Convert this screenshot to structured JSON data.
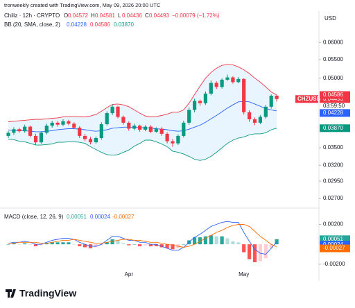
{
  "header": {
    "attribution": "tronweekly created with TradingView.com, May 09, 2026 20:00 UTC"
  },
  "footer": {
    "brand": "TradingView"
  },
  "chart_data": [
    {
      "type": "candlestick",
      "title": "Chiliz · 12h · CRYPTO",
      "symbol": "CHZUSD",
      "currency": "USD",
      "ohlc_keys": [
        "O",
        "H",
        "L",
        "C"
      ],
      "change_label": "−0.00079 (−1.72%)",
      "countdown": "03:59:50",
      "categories": [
        null,
        null,
        null,
        null,
        null,
        null,
        null,
        null,
        null,
        null,
        null,
        null,
        null,
        null,
        null,
        null,
        null,
        null,
        null,
        null,
        null,
        null,
        "Apr",
        null,
        null,
        null,
        null,
        null,
        null,
        null,
        null,
        null,
        null,
        null,
        null,
        null,
        null,
        null,
        null,
        null,
        null,
        null,
        null,
        "May",
        null,
        null,
        null,
        null,
        null,
        null
      ],
      "open": [
        0.0372,
        0.0378,
        0.0385,
        0.0381,
        0.039,
        0.0372,
        0.036,
        0.0378,
        0.0392,
        0.0398,
        0.0394,
        0.0401,
        0.0396,
        0.0388,
        0.0372,
        0.0366,
        0.036,
        0.0368,
        0.0395,
        0.0418,
        0.0432,
        0.041,
        0.0398,
        0.0386,
        0.0392,
        0.0384,
        0.039,
        0.038,
        0.0386,
        0.0376,
        0.0362,
        0.0358,
        0.0372,
        0.0398,
        0.0425,
        0.0445,
        0.044,
        0.0462,
        0.0488,
        0.0478,
        0.0496,
        0.0502,
        0.049,
        0.0498,
        0.042,
        0.0405,
        0.0398,
        0.041,
        0.0432,
        0.04572
      ],
      "high": [
        0.0381,
        0.0389,
        0.0388,
        0.0394,
        0.0392,
        0.0376,
        0.0381,
        0.0396,
        0.0402,
        0.0401,
        0.0405,
        0.0404,
        0.0399,
        0.0391,
        0.0376,
        0.037,
        0.0371,
        0.0399,
        0.0422,
        0.0437,
        0.0434,
        0.0413,
        0.0401,
        0.0396,
        0.0394,
        0.0393,
        0.0393,
        0.0389,
        0.0389,
        0.0379,
        0.0366,
        0.0375,
        0.0402,
        0.043,
        0.045,
        0.0448,
        0.0467,
        0.0494,
        0.0492,
        0.05,
        0.0509,
        0.0505,
        0.0503,
        0.05,
        0.0424,
        0.0409,
        0.0414,
        0.0436,
        0.046,
        0.04581
      ],
      "low": [
        0.0368,
        0.0374,
        0.0378,
        0.0378,
        0.0369,
        0.0355,
        0.0357,
        0.0375,
        0.0388,
        0.039,
        0.0391,
        0.0393,
        0.0385,
        0.0368,
        0.0362,
        0.0356,
        0.0357,
        0.0365,
        0.0392,
        0.0414,
        0.0407,
        0.0394,
        0.0382,
        0.0383,
        0.038,
        0.0381,
        0.0377,
        0.0378,
        0.0372,
        0.0358,
        0.0352,
        0.0355,
        0.0369,
        0.0394,
        0.042,
        0.0434,
        0.0436,
        0.0458,
        0.0473,
        0.0474,
        0.0493,
        0.0486,
        0.0487,
        0.0415,
        0.04,
        0.0393,
        0.0395,
        0.0406,
        0.0428,
        0.04436
      ],
      "close": [
        0.0378,
        0.0385,
        0.0381,
        0.039,
        0.0372,
        0.036,
        0.0378,
        0.0392,
        0.0398,
        0.0394,
        0.0401,
        0.0396,
        0.0388,
        0.0372,
        0.0366,
        0.036,
        0.0368,
        0.0395,
        0.0418,
        0.0432,
        0.041,
        0.0398,
        0.0386,
        0.0392,
        0.0384,
        0.039,
        0.038,
        0.0386,
        0.0376,
        0.0362,
        0.0358,
        0.0372,
        0.0398,
        0.0425,
        0.0445,
        0.044,
        0.0462,
        0.0488,
        0.0478,
        0.0496,
        0.0502,
        0.049,
        0.0498,
        0.042,
        0.0405,
        0.0398,
        0.041,
        0.0432,
        0.0457,
        0.04493
      ],
      "up_color": "#089981",
      "down_color": "#f23645",
      "band_fill": "rgba(33,150,243,0.10)",
      "overlay_title": "BB (20, SMA, close, 2)",
      "series": [
        {
          "color": "#2962ff",
          "values": [
            0.0383,
            0.0383,
            0.0382,
            0.0382,
            0.0381,
            0.038,
            0.038,
            0.0381,
            0.0382,
            0.0384,
            0.0385,
            0.0386,
            0.0386,
            0.0385,
            0.0384,
            0.0382,
            0.0381,
            0.0382,
            0.0384,
            0.0387,
            0.0388,
            0.0389,
            0.0389,
            0.0389,
            0.0388,
            0.0388,
            0.0387,
            0.0386,
            0.0385,
            0.0384,
            0.0382,
            0.0381,
            0.0382,
            0.0385,
            0.0389,
            0.0393,
            0.0399,
            0.0406,
            0.0413,
            0.0421,
            0.0429,
            0.0436,
            0.0443,
            0.0444,
            0.0443,
            0.0438,
            0.0433,
            0.0428,
            0.0425,
            0.04228
          ]
        },
        {
          "color": "#f23645",
          "values": [
            0.04,
            0.0401,
            0.0402,
            0.0403,
            0.0404,
            0.0405,
            0.0405,
            0.0406,
            0.0407,
            0.0408,
            0.041,
            0.0411,
            0.0411,
            0.041,
            0.041,
            0.0412,
            0.0415,
            0.0422,
            0.043,
            0.0437,
            0.0438,
            0.0436,
            0.0432,
            0.0425,
            0.0418,
            0.0412,
            0.041,
            0.0411,
            0.0413,
            0.0416,
            0.042,
            0.042,
            0.0425,
            0.044,
            0.046,
            0.048,
            0.05,
            0.0515,
            0.0526,
            0.0534,
            0.0536,
            0.0535,
            0.053,
            0.0522,
            0.0512,
            0.05,
            0.049,
            0.0478,
            0.0466,
            0.04586
          ]
        },
        {
          "color": "#089981",
          "values": [
            0.0366,
            0.0365,
            0.0362,
            0.0361,
            0.0358,
            0.0355,
            0.0355,
            0.0356,
            0.0357,
            0.036,
            0.036,
            0.0361,
            0.0361,
            0.036,
            0.0358,
            0.0352,
            0.0347,
            0.0342,
            0.0338,
            0.0337,
            0.0338,
            0.0342,
            0.0346,
            0.0353,
            0.0358,
            0.0364,
            0.0364,
            0.0361,
            0.0357,
            0.0352,
            0.0344,
            0.0342,
            0.0339,
            0.0335,
            0.033,
            0.0328,
            0.033,
            0.0335,
            0.0342,
            0.035,
            0.0358,
            0.0364,
            0.0368,
            0.037,
            0.0374,
            0.0376,
            0.0376,
            0.0378,
            0.0384,
            0.0387
          ],
          "value_labels": [
            null,
            null,
            null,
            null,
            null,
            null,
            null,
            null,
            null,
            null,
            null,
            null,
            null,
            null,
            null,
            null,
            null,
            null,
            null,
            null,
            null,
            null,
            null,
            null,
            null,
            null,
            null,
            null,
            null,
            null,
            null,
            null,
            null,
            null,
            null,
            null,
            null,
            null,
            null,
            null,
            null,
            null,
            null,
            null,
            null,
            null,
            null,
            null,
            null,
            "0.03870"
          ]
        }
      ],
      "log_scale": true,
      "ylim": [
        0.0257,
        0.0695
      ],
      "yticks": [
        {
          "value": 0.06,
          "label": "0.06000"
        },
        {
          "value": 0.055,
          "label": "0.05500"
        },
        {
          "value": 0.05,
          "label": "0.05000"
        },
        {
          "value": 0.035,
          "label": "0.03500"
        },
        {
          "value": 0.032,
          "label": "0.03200"
        },
        {
          "value": 0.0295,
          "label": "0.02950"
        },
        {
          "value": 0.027,
          "label": "0.02700"
        }
      ]
    },
    {
      "type": "macd",
      "title": "MACD (close, 12, 26, 9)",
      "histogram": {
        "colors": [
          "#26a69a",
          "#b2dfdb",
          "#ff5252",
          "#ffcdd2"
        ],
        "values": [
          0,
          0.0001,
          0,
          0.0001,
          0,
          -0.0002,
          -0.0001,
          0.0001,
          0.0002,
          0.0002,
          0.0002,
          0.0002,
          0,
          -0.0002,
          -0.0003,
          -0.0004,
          -0.0003,
          -0.0001,
          0.0002,
          0.0005,
          0.0004,
          0.0001,
          -0.0001,
          0,
          -0.0002,
          -0.0001,
          -0.0002,
          -0.0002,
          -0.0003,
          -0.0004,
          -0.0005,
          -0.0004,
          0,
          0.0004,
          0.0007,
          0.0007,
          0.0008,
          0.0009,
          0.0008,
          0.0008,
          0.0006,
          0.0003,
          0.0002,
          -0.0008,
          -0.0015,
          -0.0018,
          -0.0017,
          -0.0014,
          -0.0004,
          0.00051
        ]
      },
      "series": [
        {
          "color": "#2962ff",
          "values": [
            0.0001,
            0.0002,
            0.0002,
            0.0003,
            0.0002,
            0,
            0,
            0.0002,
            0.0004,
            0.0005,
            0.0006,
            0.0006,
            0.0005,
            0.0002,
            0,
            -0.0002,
            -0.0002,
            0,
            0.0004,
            0.0008,
            0.0008,
            0.0006,
            0.0004,
            0.0004,
            0.0002,
            0.0002,
            0,
            0,
            -0.0002,
            -0.0004,
            -0.0006,
            -0.0006,
            -0.0003,
            0.0002,
            0.0007,
            0.001,
            0.0014,
            0.0018,
            0.002,
            0.0022,
            0.0023,
            0.0022,
            0.0022,
            0.0012,
            0.0003,
            -0.0005,
            -0.0009,
            -0.001,
            -0.0004,
            0.00024
          ]
        },
        {
          "color": "#ff6d00",
          "values": [
            0.0001,
            0.0001,
            0.0002,
            0.0002,
            0.0002,
            0.0002,
            0.0001,
            0.0001,
            0.0002,
            0.0003,
            0.0004,
            0.0004,
            0.0005,
            0.0004,
            0.0003,
            0.0002,
            0.0001,
            0.0001,
            0.0002,
            0.0003,
            0.0004,
            0.0005,
            0.0005,
            0.0004,
            0.0004,
            0.0003,
            0.0002,
            0.0002,
            0.0001,
            0,
            -0.0001,
            -0.0002,
            -0.0003,
            -0.0002,
            0,
            0.0003,
            0.0006,
            0.0009,
            0.0012,
            0.0014,
            0.0017,
            0.0019,
            0.002,
            0.002,
            0.0018,
            0.0013,
            0.0008,
            0.0004,
            0,
            -0.00027
          ]
        }
      ],
      "ylim": [
        -0.0025,
        0.0035
      ],
      "yticks": [
        {
          "value": 0.002,
          "label": "0.00200"
        },
        {
          "value": -0.002,
          "label": "-0.00200"
        }
      ]
    }
  ]
}
